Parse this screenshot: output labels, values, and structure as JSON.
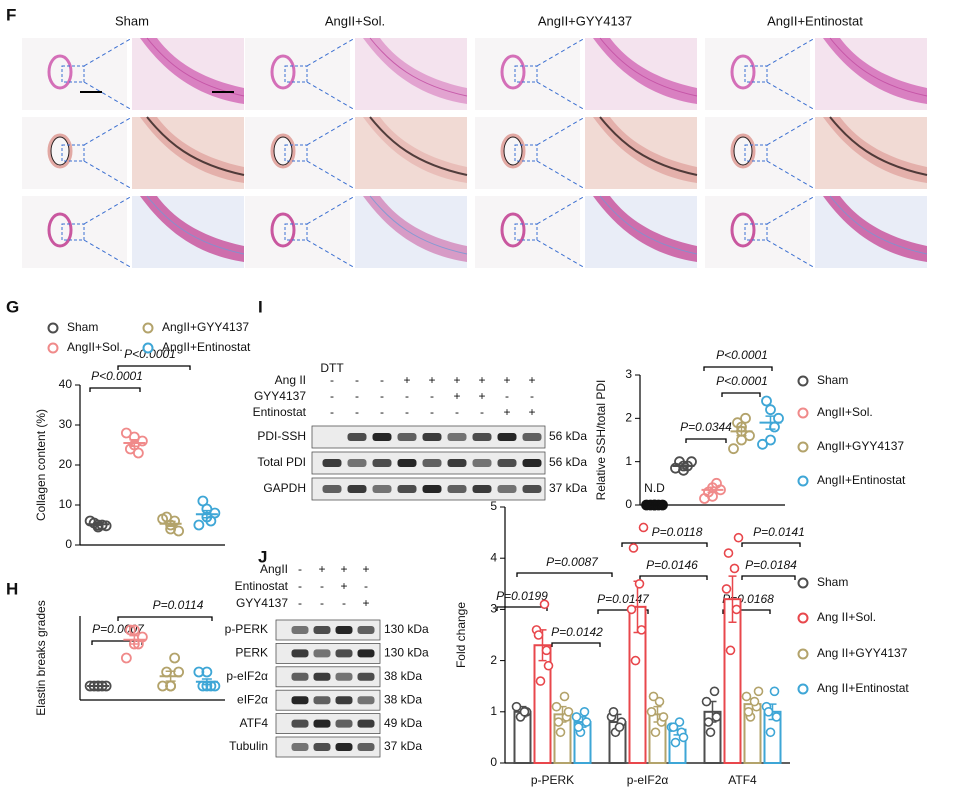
{
  "histology": {
    "letter": "F",
    "columns": [
      "Sham",
      "AngII+Sol.",
      "AngII+GYY4137",
      "AngII+Entinostat"
    ]
  },
  "blot_I": {
    "letter": "I",
    "dtt": "DTT",
    "treatments": [
      {
        "label": "Ang II",
        "signs": [
          "-",
          "-",
          "-",
          "+",
          "+",
          "+",
          "+",
          "+",
          "+"
        ]
      },
      {
        "label": "GYY4137",
        "signs": [
          "-",
          "-",
          "-",
          "-",
          "-",
          "+",
          "+",
          "-",
          "-"
        ]
      },
      {
        "label": "Entinostat",
        "signs": [
          "-",
          "-",
          "-",
          "-",
          "-",
          "-",
          "-",
          "+",
          "+"
        ]
      }
    ],
    "bands": [
      {
        "label": "PDI-SSH",
        "size": "56 kDa"
      },
      {
        "label": "Total PDI",
        "size": "56 kDa"
      },
      {
        "label": "GAPDH",
        "size": "37 kDa"
      }
    ]
  },
  "blot_J": {
    "letter": "J",
    "treatments": [
      {
        "label": "AngII",
        "signs": [
          "-",
          "+",
          "+",
          "+"
        ]
      },
      {
        "label": "Entinostat",
        "signs": [
          "-",
          "-",
          "+",
          "-"
        ]
      },
      {
        "label": "GYY4137",
        "signs": [
          "-",
          "-",
          "-",
          "+"
        ]
      }
    ],
    "bands": [
      {
        "label": "p-PERK",
        "size": "130 kDa"
      },
      {
        "label": "PERK",
        "size": "130 kDa"
      },
      {
        "label": "p-eIF2α",
        "size": "38 kDa"
      },
      {
        "label": "eIF2α",
        "size": "38 kDa"
      },
      {
        "label": "ATF4",
        "size": "49 kDa"
      },
      {
        "label": "Tubulin",
        "size": "37 kDa"
      }
    ]
  },
  "chart_data": [
    {
      "type": "dot",
      "panel": "G",
      "ylabel": "Collagen content (%)",
      "ylim": [
        0,
        40
      ],
      "yticks": [
        0,
        10,
        20,
        30,
        40
      ],
      "series": [
        {
          "name": "Sham",
          "color": "#4d4d4d",
          "values": [
            4.5,
            5,
            5.5,
            5,
            6,
            4.8
          ],
          "mean": 5.2,
          "error": 0.3
        },
        {
          "name": "AngII+Sol.",
          "color": "#f08a8a",
          "values": [
            25,
            27,
            24,
            23,
            28,
            26
          ],
          "mean": 25.5,
          "error": 0.8
        },
        {
          "name": "AngII+GYY4137",
          "color": "#b3a36b",
          "values": [
            4,
            5,
            7,
            6,
            6.5,
            3.5
          ],
          "mean": 5.3,
          "error": 0.6
        },
        {
          "name": "AngII+Entinostat",
          "color": "#3ea6d6",
          "values": [
            7,
            9,
            11,
            6,
            5,
            8
          ],
          "mean": 7.7,
          "error": 0.9
        }
      ],
      "annotations": [
        "P<0.0001",
        "P<0.0001"
      ]
    },
    {
      "type": "dot",
      "panel": "H",
      "ylabel": "Elastin breaks grades",
      "ylim": [
        0,
        6
      ],
      "series": [
        {
          "color": "#4d4d4d",
          "values": [
            1,
            1,
            1,
            1,
            1,
            1
          ],
          "mean": 1,
          "error": 0
        },
        {
          "color": "#f08a8a",
          "values": [
            4,
            5,
            5,
            4,
            3,
            4.5
          ],
          "mean": 4.3,
          "error": 0.3
        },
        {
          "color": "#b3a36b",
          "values": [
            1,
            1,
            2,
            3,
            1,
            2
          ],
          "mean": 1.7,
          "error": 0.35
        },
        {
          "color": "#3ea6d6",
          "values": [
            1,
            2,
            1,
            1,
            2,
            1
          ],
          "mean": 1.3,
          "error": 0.2
        }
      ],
      "annotations": [
        "P=0.0007",
        "P=0.0114"
      ]
    },
    {
      "type": "dot",
      "panel": "I",
      "ylabel": "Relative SSH/total PDI",
      "ylim": [
        0,
        3
      ],
      "yticks": [
        0,
        1,
        2,
        3
      ],
      "series": [
        {
          "label": "N.D",
          "color": "#111111",
          "values": [
            0,
            0,
            0,
            0,
            0,
            0
          ],
          "mean": 0,
          "error": 0
        },
        {
          "name": "Sham",
          "color": "#4d4d4d",
          "values": [
            0.8,
            0.9,
            1.0,
            0.9,
            0.85,
            1.0
          ],
          "mean": 0.9,
          "error": 0.05
        },
        {
          "name": "AngII+Sol.",
          "color": "#f08a8a",
          "values": [
            0.4,
            0.2,
            0.3,
            0.5,
            0.15,
            0.35
          ],
          "mean": 0.35,
          "error": 0.06
        },
        {
          "name": "AngII+GYY4137",
          "color": "#b3a36b",
          "values": [
            1.5,
            1.7,
            1.9,
            2.0,
            1.3,
            1.6,
            1.8
          ],
          "mean": 1.7,
          "error": 0.1
        },
        {
          "name": "AngII+Entinostat",
          "color": "#3ea6d6",
          "values": [
            1.5,
            2.2,
            2.4,
            1.8,
            1.4,
            2.0
          ],
          "mean": 1.9,
          "error": 0.15
        }
      ],
      "annotations": [
        "P<0.0001",
        "P<0.0001",
        "P=0.0344"
      ]
    },
    {
      "type": "bar",
      "ylabel": "Fold change",
      "ylim": [
        0,
        5
      ],
      "yticks": [
        0,
        1,
        2,
        3,
        4,
        5
      ],
      "categories": [
        "p-PERK",
        "p-eIF2α",
        "ATF4"
      ],
      "series": [
        {
          "name": "Sham",
          "color": "#4d4d4d",
          "values": [
            1.0,
            0.8,
            1.0
          ],
          "errors": [
            0.1,
            0.15,
            0.2
          ],
          "points": [
            [
              0.9,
              1.0,
              1.1,
              1.0
            ],
            [
              0.6,
              0.8,
              0.9,
              0.7,
              1.0
            ],
            [
              0.6,
              0.9,
              1.2,
              1.4,
              0.8
            ]
          ]
        },
        {
          "name": "Ang II+Sol.",
          "color": "#e8474c",
          "values": [
            2.3,
            3.05,
            3.2
          ],
          "errors": [
            0.3,
            0.5,
            0.45
          ],
          "points": [
            [
              1.6,
              2.2,
              2.6,
              3.1,
              2.5,
              1.9
            ],
            [
              2.0,
              2.6,
              3.0,
              3.5,
              4.2,
              4.6
            ],
            [
              2.2,
              3.0,
              3.4,
              3.8,
              4.1,
              4.4
            ]
          ]
        },
        {
          "name": "Ang II+GYY4137",
          "color": "#b3a36b",
          "values": [
            0.95,
            0.95,
            1.15
          ],
          "errors": [
            0.15,
            0.15,
            0.1
          ],
          "points": [
            [
              0.6,
              0.9,
              1.1,
              1.3,
              0.8,
              1.0
            ],
            [
              0.6,
              0.8,
              1.0,
              1.2,
              1.3,
              0.9
            ],
            [
              0.9,
              1.1,
              1.3,
              1.2,
              1.0,
              1.4
            ]
          ]
        },
        {
          "name": "Ang II+Entinostat",
          "color": "#3ea6d6",
          "values": [
            0.8,
            0.65,
            1.0
          ],
          "errors": [
            0.1,
            0.1,
            0.15
          ],
          "points": [
            [
              0.6,
              0.8,
              0.9,
              1.0,
              0.7
            ],
            [
              0.4,
              0.6,
              0.7,
              0.8,
              0.7,
              0.5
            ],
            [
              0.6,
              0.9,
              1.1,
              1.4,
              1.0
            ]
          ]
        }
      ],
      "annotations": [
        "P=0.0199",
        "P=0.0087",
        "P=0.0142",
        "P=0.0147",
        "P=0.0118",
        "P=0.0146",
        "P=0.0168",
        "P=0.0141",
        "P=0.0184"
      ]
    }
  ]
}
